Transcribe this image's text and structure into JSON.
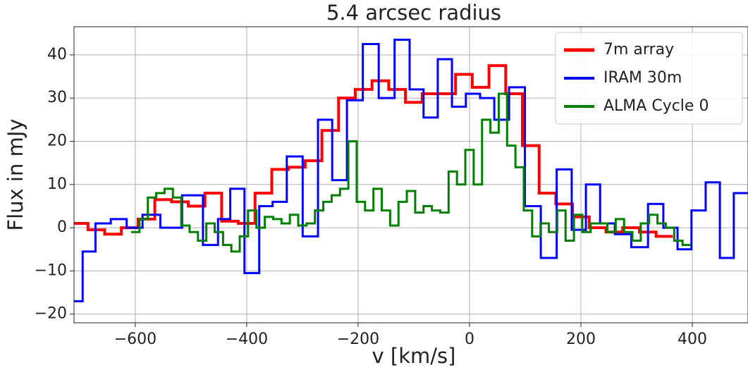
{
  "chart_data": {
    "type": "step",
    "title": "5.4 arcsec radius",
    "x_label": "v [km/s]",
    "y_label": "Flux in mJy",
    "xlim": [
      -710,
      500
    ],
    "ylim": [
      -22,
      46.5
    ],
    "xticks": [
      {
        "value": -600,
        "label": "−600"
      },
      {
        "value": -400,
        "label": "−400"
      },
      {
        "value": -200,
        "label": "−200"
      },
      0,
      200,
      400
    ],
    "yticks": [
      {
        "value": -20,
        "label": "−20"
      },
      {
        "value": -10,
        "label": "−10"
      },
      0,
      10,
      20,
      30,
      40
    ],
    "grid": true,
    "legend": "upper right",
    "series": [
      {
        "name": "7m array",
        "color": "#ff0000",
        "width": 4,
        "x": [
          -700,
          -670,
          -640,
          -610,
          -580,
          -550,
          -520,
          -490,
          -460,
          -430,
          -400,
          -370,
          -340,
          -310,
          -280,
          -250,
          -220,
          -190,
          -160,
          -130,
          -100,
          -70,
          -40,
          -10,
          20,
          50,
          80,
          110,
          140,
          170,
          200,
          230,
          260,
          290,
          320,
          350
        ],
        "values": [
          1,
          -0.5,
          -1.5,
          0,
          2,
          6.5,
          6,
          5,
          8,
          1.5,
          1,
          8,
          13.5,
          14,
          15.5,
          22.5,
          30,
          32,
          34,
          32,
          29,
          31,
          31,
          35.5,
          32.5,
          37.5,
          31,
          19,
          8,
          5.5,
          2.5,
          0,
          -1,
          0,
          -1,
          -2
        ]
      },
      {
        "name": "IRAM 30m",
        "color": "#0000ff",
        "width": 3,
        "x": [
          -704,
          -685,
          -658,
          -630,
          -601,
          -573,
          -537,
          -495,
          -462,
          -441,
          -418,
          -390,
          -365,
          -342,
          -314,
          -285,
          -259,
          -234,
          -206,
          -177,
          -149,
          -120,
          -95,
          -70,
          -44,
          -19,
          6,
          32,
          57,
          85,
          114,
          142,
          171,
          196,
          222,
          247,
          275,
          306,
          335,
          361,
          386,
          411,
          437,
          462,
          487
        ],
        "values": [
          -17,
          -5.5,
          1,
          2,
          0,
          3,
          0,
          7.5,
          -4,
          2,
          9,
          -10.5,
          5,
          6,
          16.5,
          -2,
          25,
          11,
          29.5,
          42.5,
          30,
          43.5,
          32,
          25.5,
          39,
          28,
          31,
          30,
          25,
          32.5,
          5,
          -7,
          13.5,
          -0.5,
          10,
          1,
          -1.5,
          -4.5,
          5.5,
          0,
          -5,
          4,
          10.5,
          -7,
          8
        ]
      },
      {
        "name": "ALMA Cycle 0",
        "color": "#008000",
        "width": 3,
        "x": [
          -600,
          -585,
          -570,
          -555,
          -540,
          -525,
          -510,
          -495,
          -480,
          -465,
          -450,
          -435,
          -420,
          -405,
          -390,
          -375,
          -360,
          -345,
          -330,
          -315,
          -300,
          -285,
          -270,
          -255,
          -240,
          -225,
          -210,
          -195,
          -180,
          -165,
          -150,
          -135,
          -120,
          -105,
          -90,
          -75,
          -60,
          -45,
          -30,
          -15,
          0,
          15,
          30,
          45,
          60,
          75,
          90,
          105,
          120,
          135,
          150,
          165,
          180,
          195,
          210,
          225,
          240,
          255,
          270,
          285,
          300,
          315,
          330,
          345,
          360,
          375,
          390
        ],
        "values": [
          -1,
          2,
          7,
          8,
          9,
          7,
          0.5,
          -1,
          -3,
          1,
          -1,
          -4,
          -5.5,
          -2,
          4,
          0,
          2.5,
          2,
          1,
          3,
          0.5,
          1,
          4,
          6,
          7.5,
          9,
          20,
          6,
          4,
          9,
          4,
          0.5,
          6,
          8.5,
          3.5,
          5,
          4,
          3.5,
          13,
          10,
          18,
          10,
          25,
          22,
          31,
          19,
          14,
          4,
          -2,
          1,
          -1,
          4,
          -3,
          3,
          -1,
          1,
          1,
          -1,
          2,
          -1,
          -3,
          1,
          3,
          1,
          0,
          -3,
          -4
        ]
      }
    ]
  }
}
